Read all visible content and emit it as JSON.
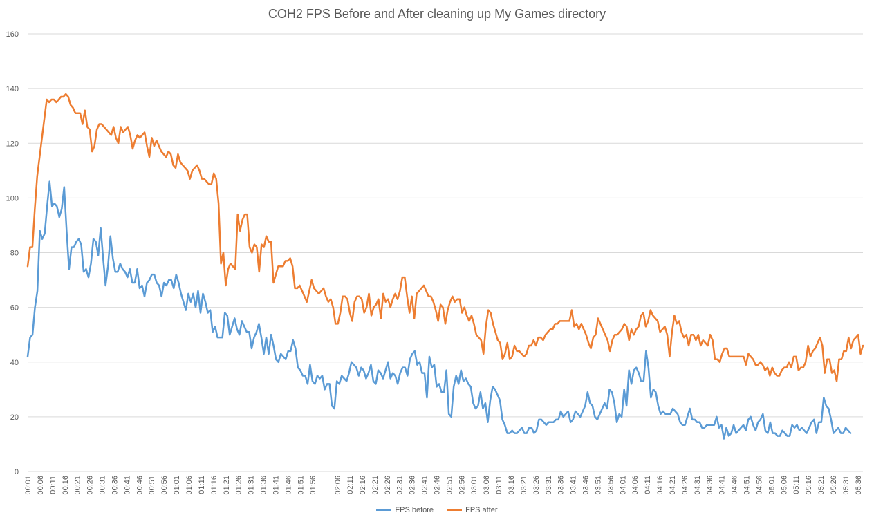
{
  "title": "COH2 FPS Before and After cleaning up My Games directory",
  "colors": {
    "before": "#5B9BD5",
    "after": "#ED7D31",
    "grid": "#D9D9D9",
    "text": "#595959"
  },
  "chart_data": {
    "type": "line",
    "title": "COH2 FPS Before and After cleaning up My Games directory",
    "ylim": [
      0,
      160
    ],
    "yticks": [
      0,
      20,
      40,
      60,
      80,
      100,
      120,
      140,
      160
    ],
    "grid": true,
    "legend_position": "bottom",
    "xticks": [
      "00:01",
      "00:06",
      "00:11",
      "00:16",
      "00:21",
      "00:26",
      "00:31",
      "00:36",
      "00:41",
      "00:46",
      "00:51",
      "00:56",
      "01:01",
      "01:06",
      "01:11",
      "01:16",
      "01:21",
      "01:26",
      "01:31",
      "01:36",
      "01:41",
      "01:46",
      "01:51",
      "01:56",
      "02:06",
      "02:11",
      "02:16",
      "02:21",
      "02:26",
      "02:31",
      "02:36",
      "02:41",
      "02:46",
      "02:51",
      "02:56",
      "03:01",
      "03:06",
      "03:11",
      "03:16",
      "03:21",
      "03:26",
      "03:31",
      "03:36",
      "03:41",
      "03:46",
      "03:51",
      "03:56",
      "04:01",
      "04:06",
      "04:11",
      "04:16",
      "04:21",
      "04:26",
      "04:31",
      "04:36",
      "04:41",
      "04:46",
      "04:51",
      "04:56",
      "05:01",
      "05:06",
      "05:11",
      "05:16",
      "05:21",
      "05:26",
      "05:31",
      "05:36"
    ],
    "x_start_seconds": 1,
    "x_end_seconds": 338,
    "series": [
      {
        "name": "FPS before",
        "color": "#5B9BD5",
        "x_end_seconds": 333,
        "values": [
          42,
          49,
          50,
          60,
          66,
          88,
          85,
          87,
          97,
          106,
          97,
          98,
          97,
          93,
          96,
          104,
          88,
          74,
          82,
          82,
          84,
          85,
          83,
          73,
          74,
          71,
          76,
          85,
          84,
          79,
          89,
          78,
          68,
          75,
          86,
          78,
          73,
          73,
          76,
          74,
          73,
          71,
          74,
          69,
          69,
          74,
          67,
          68,
          64,
          69,
          70,
          72,
          72,
          69,
          68,
          64,
          69,
          68,
          70,
          70,
          67,
          72,
          69,
          65,
          62,
          59,
          65,
          62,
          65,
          60,
          66,
          58,
          65,
          62,
          58,
          59,
          51,
          53,
          49,
          49,
          49,
          58,
          57,
          50,
          53,
          56,
          52,
          50,
          55,
          53,
          51,
          51,
          45,
          49,
          51,
          54,
          49,
          43,
          49,
          43,
          50,
          46,
          41,
          40,
          43,
          42,
          41,
          44,
          44,
          48,
          45,
          38,
          37,
          35,
          35,
          32,
          39,
          33,
          32,
          35,
          34,
          35,
          30,
          32,
          32,
          24,
          23,
          33,
          32,
          35,
          34,
          33,
          36,
          40,
          39,
          38,
          35,
          38,
          37,
          34,
          36,
          39,
          33,
          32,
          37,
          36,
          34,
          37,
          40,
          34,
          36,
          35,
          32,
          36,
          38,
          38,
          35,
          41,
          43,
          44,
          39,
          40,
          36,
          36,
          27,
          42,
          38,
          39,
          31,
          32,
          29,
          29,
          37,
          21,
          20,
          31,
          35,
          32,
          37,
          33,
          34,
          32,
          31,
          25,
          23,
          24,
          29,
          23,
          25,
          18,
          26,
          31,
          30,
          28,
          26,
          19,
          17,
          14,
          14,
          15,
          14,
          14,
          15,
          16,
          14,
          14,
          16,
          16,
          14,
          15,
          19,
          19,
          18,
          17,
          18,
          18,
          18,
          19,
          19,
          22,
          20,
          21,
          22,
          18,
          19,
          22,
          21,
          20,
          22,
          24,
          29,
          25,
          24,
          20,
          19,
          21,
          23,
          25,
          23,
          30,
          29,
          25,
          18,
          21,
          20,
          30,
          24,
          37,
          32,
          37,
          38,
          36,
          33,
          33,
          44,
          38,
          27,
          30,
          29,
          24,
          21,
          22,
          21,
          21,
          21,
          23,
          22,
          21,
          18,
          17,
          17,
          20,
          23,
          19,
          19,
          18,
          18,
          16,
          16,
          17,
          17,
          17,
          17,
          20,
          16,
          17,
          12,
          16,
          13,
          14,
          17,
          14,
          15,
          16,
          17,
          15,
          19,
          20,
          17,
          15,
          18,
          19,
          21,
          15,
          14,
          18,
          14,
          14,
          13,
          13,
          15,
          14,
          13,
          13,
          17,
          16,
          17,
          15,
          16,
          15,
          14,
          16,
          18,
          19,
          14,
          18,
          18,
          27,
          24,
          23,
          19,
          14,
          15,
          16,
          14,
          14,
          16,
          15,
          14
        ]
      },
      {
        "name": "FPS after",
        "color": "#ED7D31",
        "x_end_seconds": 338,
        "values": [
          75,
          82,
          82,
          96,
          108,
          115,
          122,
          129,
          136,
          135,
          136,
          136,
          135,
          136,
          137,
          137,
          138,
          137,
          134,
          133,
          131,
          131,
          131,
          127,
          132,
          126,
          125,
          117,
          119,
          125,
          127,
          127,
          126,
          125,
          124,
          123,
          126,
          122,
          120,
          126,
          124,
          125,
          126,
          123,
          118,
          121,
          123,
          122,
          123,
          124,
          119,
          115,
          122,
          119,
          121,
          119,
          117,
          116,
          115,
          117,
          116,
          112,
          111,
          116,
          113,
          112,
          111,
          110,
          107,
          110,
          111,
          112,
          110,
          107,
          107,
          106,
          105,
          105,
          109,
          107,
          98,
          76,
          80,
          68,
          74,
          76,
          75,
          74,
          94,
          88,
          92,
          94,
          94,
          82,
          80,
          83,
          82,
          73,
          83,
          82,
          86,
          84,
          84,
          69,
          72,
          75,
          75,
          75,
          77,
          77,
          78,
          75,
          67,
          67,
          68,
          66,
          64,
          62,
          66,
          70,
          67,
          66,
          65,
          66,
          67,
          64,
          62,
          63,
          60,
          54,
          54,
          58,
          64,
          64,
          63,
          58,
          55,
          62,
          64,
          64,
          63,
          58,
          60,
          65,
          57,
          60,
          61,
          63,
          56,
          65,
          62,
          63,
          60,
          63,
          65,
          63,
          66,
          71,
          71,
          64,
          58,
          64,
          56,
          65,
          66,
          67,
          68,
          66,
          64,
          64,
          62,
          59,
          55,
          61,
          60,
          54,
          59,
          62,
          64,
          62,
          63,
          63,
          58,
          60,
          57,
          55,
          57,
          54,
          50,
          49,
          48,
          43,
          53,
          59,
          58,
          54,
          51,
          48,
          47,
          41,
          43,
          47,
          41,
          42,
          46,
          44,
          44,
          43,
          42,
          43,
          46,
          46,
          48,
          46,
          49,
          49,
          48,
          50,
          51,
          52,
          52,
          54,
          54,
          55,
          55,
          55,
          55,
          55,
          59,
          53,
          54,
          52,
          54,
          52,
          50,
          47,
          45,
          49,
          50,
          56,
          54,
          52,
          50,
          48,
          44,
          48,
          50,
          50,
          51,
          52,
          54,
          53,
          48,
          52,
          50,
          52,
          53,
          57,
          58,
          53,
          55,
          59,
          57,
          56,
          55,
          51,
          52,
          53,
          50,
          42,
          51,
          57,
          54,
          55,
          51,
          49,
          50,
          46,
          50,
          50,
          48,
          50,
          46,
          48,
          47,
          46,
          50,
          48,
          41,
          41,
          40,
          43,
          45,
          45,
          42,
          42,
          42,
          42,
          42,
          42,
          42,
          39,
          43,
          42,
          41,
          39,
          39,
          40,
          39,
          37,
          38,
          35,
          38,
          36,
          35,
          35,
          37,
          38,
          38,
          40,
          38,
          42,
          42,
          37,
          38,
          38,
          40,
          46,
          42,
          44,
          45,
          47,
          49,
          46,
          36,
          41,
          41,
          36,
          37,
          33,
          41,
          41,
          44,
          44,
          49,
          45,
          48,
          49,
          50,
          43,
          46
        ]
      }
    ]
  }
}
